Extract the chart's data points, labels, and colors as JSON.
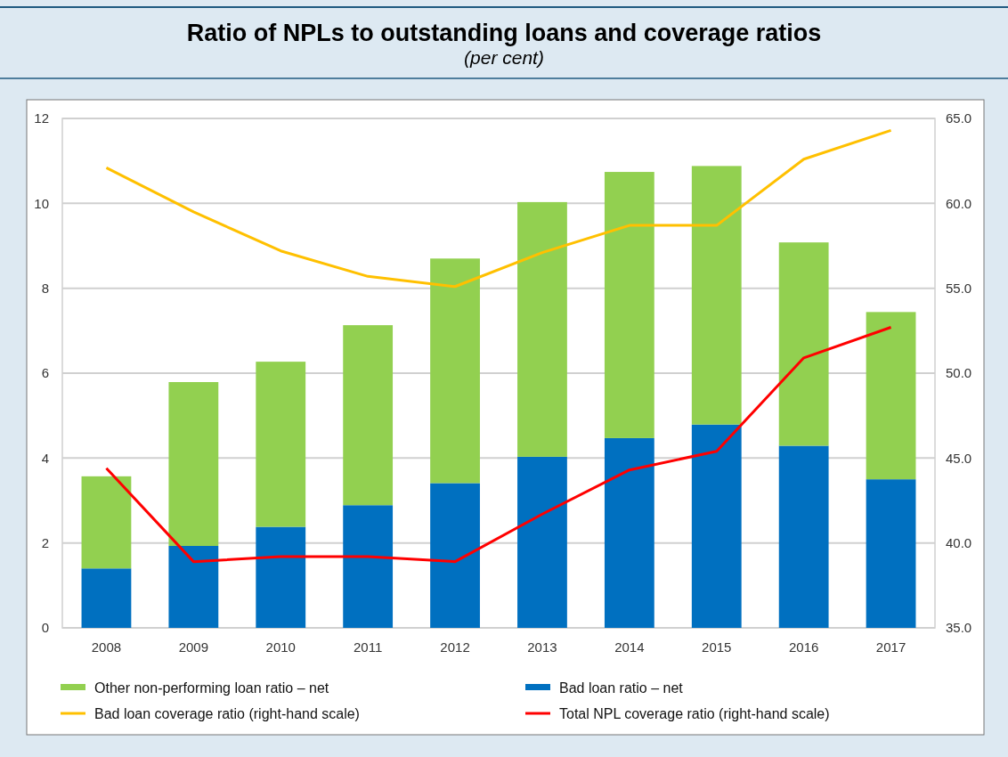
{
  "chart_data": {
    "type": "bar",
    "title": "Ratio of NPLs to outstanding loans and coverage ratios",
    "subtitle": "(per cent)",
    "categories": [
      "2008",
      "2009",
      "2010",
      "2011",
      "2012",
      "2013",
      "2014",
      "2015",
      "2016",
      "2017"
    ],
    "stacked": true,
    "series": [
      {
        "name": "Bad loan ratio – net",
        "color": "#0070c0",
        "values": [
          1.4,
          1.93,
          2.38,
          2.89,
          3.41,
          4.03,
          4.47,
          4.79,
          4.29,
          3.5
        ]
      },
      {
        "name": "Other non-performing loan ratio  –  net",
        "color": "#92d050",
        "values": [
          2.17,
          3.86,
          3.89,
          4.24,
          5.29,
          6.0,
          6.27,
          6.09,
          4.79,
          3.94
        ]
      },
      {
        "name": "Bad loan coverage ratio (right-hand scale)",
        "type": "line",
        "axis": "y2",
        "color": "#ffc000",
        "values": [
          62.1,
          59.5,
          57.2,
          55.7,
          55.1,
          57.1,
          58.7,
          58.7,
          62.6,
          64.3
        ]
      },
      {
        "name": "Total NPL coverage ratio (right-hand scale)",
        "type": "line",
        "axis": "y2",
        "color": "#ff0000",
        "values": [
          44.4,
          38.9,
          39.2,
          39.2,
          38.9,
          41.7,
          44.3,
          45.4,
          50.9,
          52.7
        ]
      }
    ],
    "ylim": [
      0,
      12
    ],
    "yticks": [
      0,
      2,
      4,
      6,
      8,
      10,
      12
    ],
    "y2lim": [
      35,
      65
    ],
    "y2ticks": [
      {
        "value": 35,
        "label": "35.0"
      },
      {
        "value": 40,
        "label": "40.0"
      },
      {
        "value": 45,
        "label": "45.0"
      },
      {
        "value": 50,
        "label": "50.0"
      },
      {
        "value": 55,
        "label": "55.0"
      },
      {
        "value": 60,
        "label": "60.0"
      },
      {
        "value": 65,
        "label": "65.0"
      }
    ],
    "grid": "y",
    "legend": "bottom"
  }
}
